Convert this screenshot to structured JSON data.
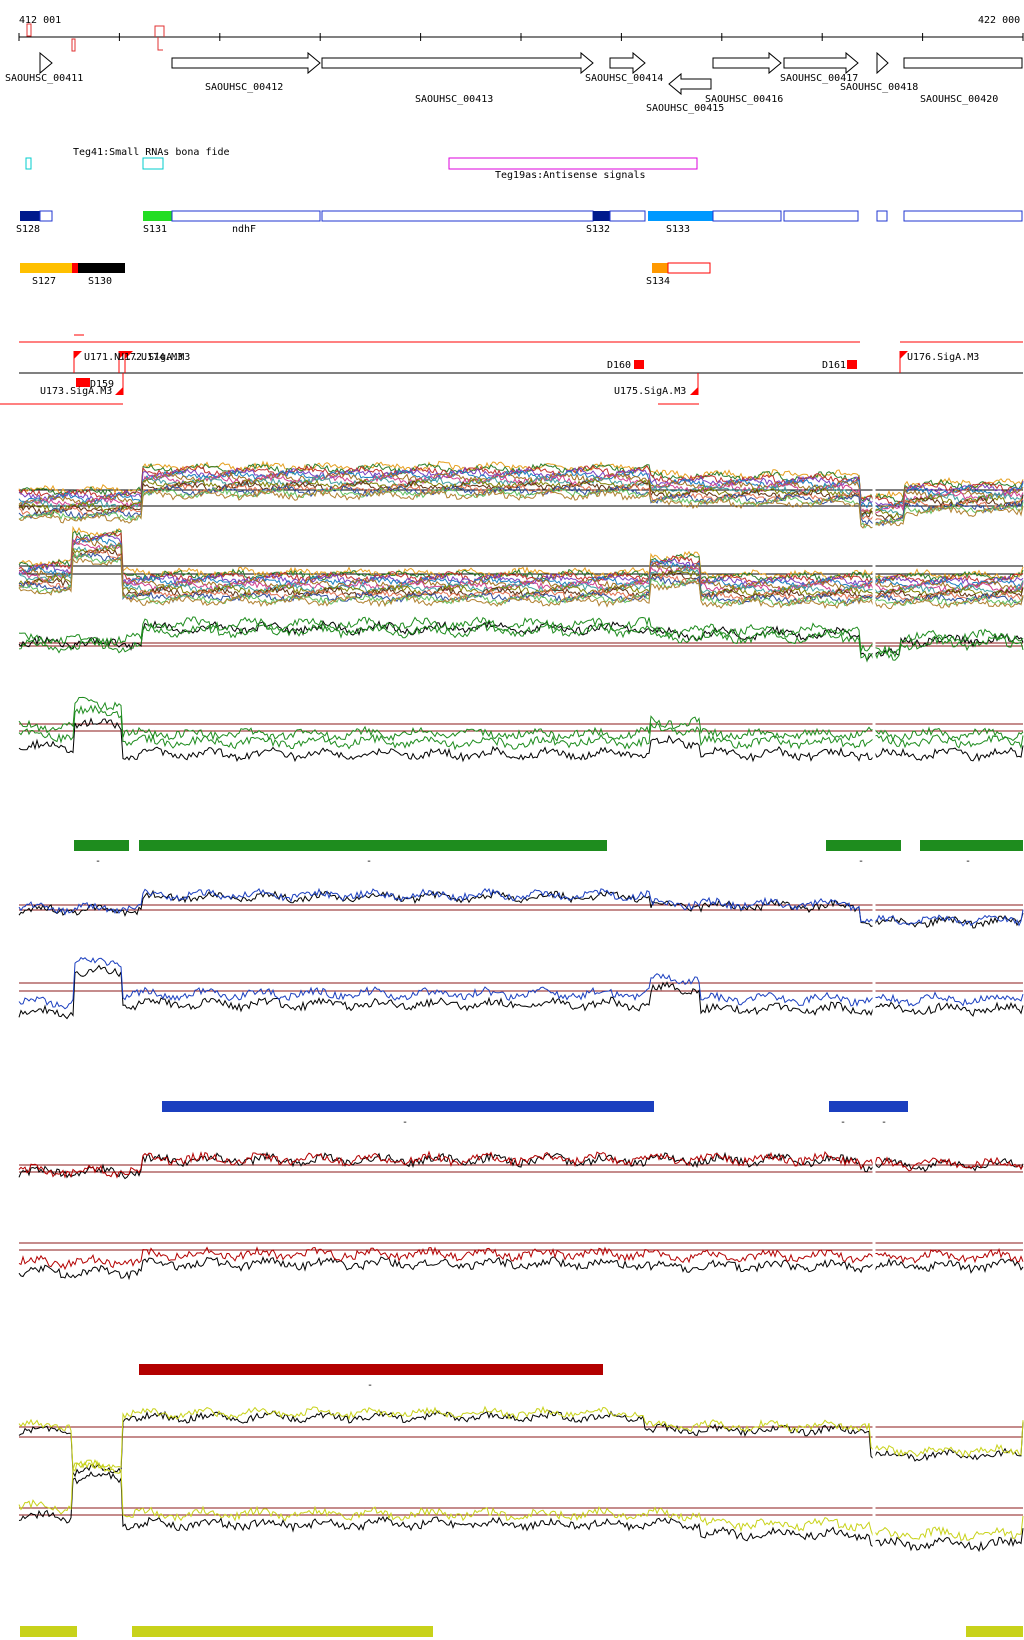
{
  "coordinates": {
    "start_label": "412 001",
    "end_label": "422 000"
  },
  "colors": {
    "gene_outline": "#000000",
    "srna": "#00cccc",
    "antisense": "#dd00dd",
    "segment_outline": "#1f35d0",
    "promoter": "#ff0000",
    "series_a": "#1e8c1e",
    "series_b": "#1b3fbf",
    "series_c": "#b30000",
    "series_d": "#c8d21a",
    "threshold": "#8b1a1a"
  },
  "genes": [
    {
      "id": "g411",
      "label": "SAOUHSC_00411",
      "strand": "+"
    },
    {
      "id": "g412",
      "label": "SAOUHSC_00412",
      "strand": "+"
    },
    {
      "id": "g413",
      "label": "SAOUHSC_00413",
      "strand": "+"
    },
    {
      "id": "g414",
      "label": "SAOUHSC_00414",
      "strand": "+"
    },
    {
      "id": "g415",
      "label": "SAOUHSC_00415",
      "strand": "-"
    },
    {
      "id": "g416",
      "label": "SAOUHSC_00416",
      "strand": "+"
    },
    {
      "id": "g417",
      "label": "SAOUHSC_00417",
      "strand": "+"
    },
    {
      "id": "g418",
      "label": "SAOUHSC_00418",
      "strand": "+"
    },
    {
      "id": "g420",
      "label": "SAOUHSC_00420",
      "strand": "+"
    }
  ],
  "features": {
    "teg41": "Teg41:Small RNAs bona fide",
    "teg19as": "Teg19as:Antisense signals"
  },
  "segments": [
    {
      "id": "s128",
      "label": "S128",
      "color": "#001a8c"
    },
    {
      "id": "s131",
      "label": "S131",
      "color": "#22dd22"
    },
    {
      "id": "ndhf",
      "label": "ndhF",
      "color": ""
    },
    {
      "id": "s132",
      "label": "S132",
      "color": "#001a8c"
    },
    {
      "id": "s133",
      "label": "S133",
      "color": "#0099ff"
    },
    {
      "id": "s127",
      "label": "S127",
      "color": "#ffc000"
    },
    {
      "id": "s130",
      "label": "S130",
      "color": "#000000"
    },
    {
      "id": "s134",
      "label": "S134",
      "color": "#ff9900"
    }
  ],
  "promoters": [
    {
      "id": "u171",
      "label": "U171.N..."
    },
    {
      "id": "u172",
      "label": "U172.SigA.M3"
    },
    {
      "id": "u174",
      "label": "U174.M3"
    },
    {
      "id": "d159",
      "label": "D159"
    },
    {
      "id": "u173",
      "label": "U173.SigA.M3"
    },
    {
      "id": "d160",
      "label": "D160"
    },
    {
      "id": "d161",
      "label": "D161"
    },
    {
      "id": "u175",
      "label": "U175.SigA.M3"
    },
    {
      "id": "u176",
      "label": "U176.SigA.M3"
    }
  ],
  "bar_marks": {
    "minus": "-"
  }
}
